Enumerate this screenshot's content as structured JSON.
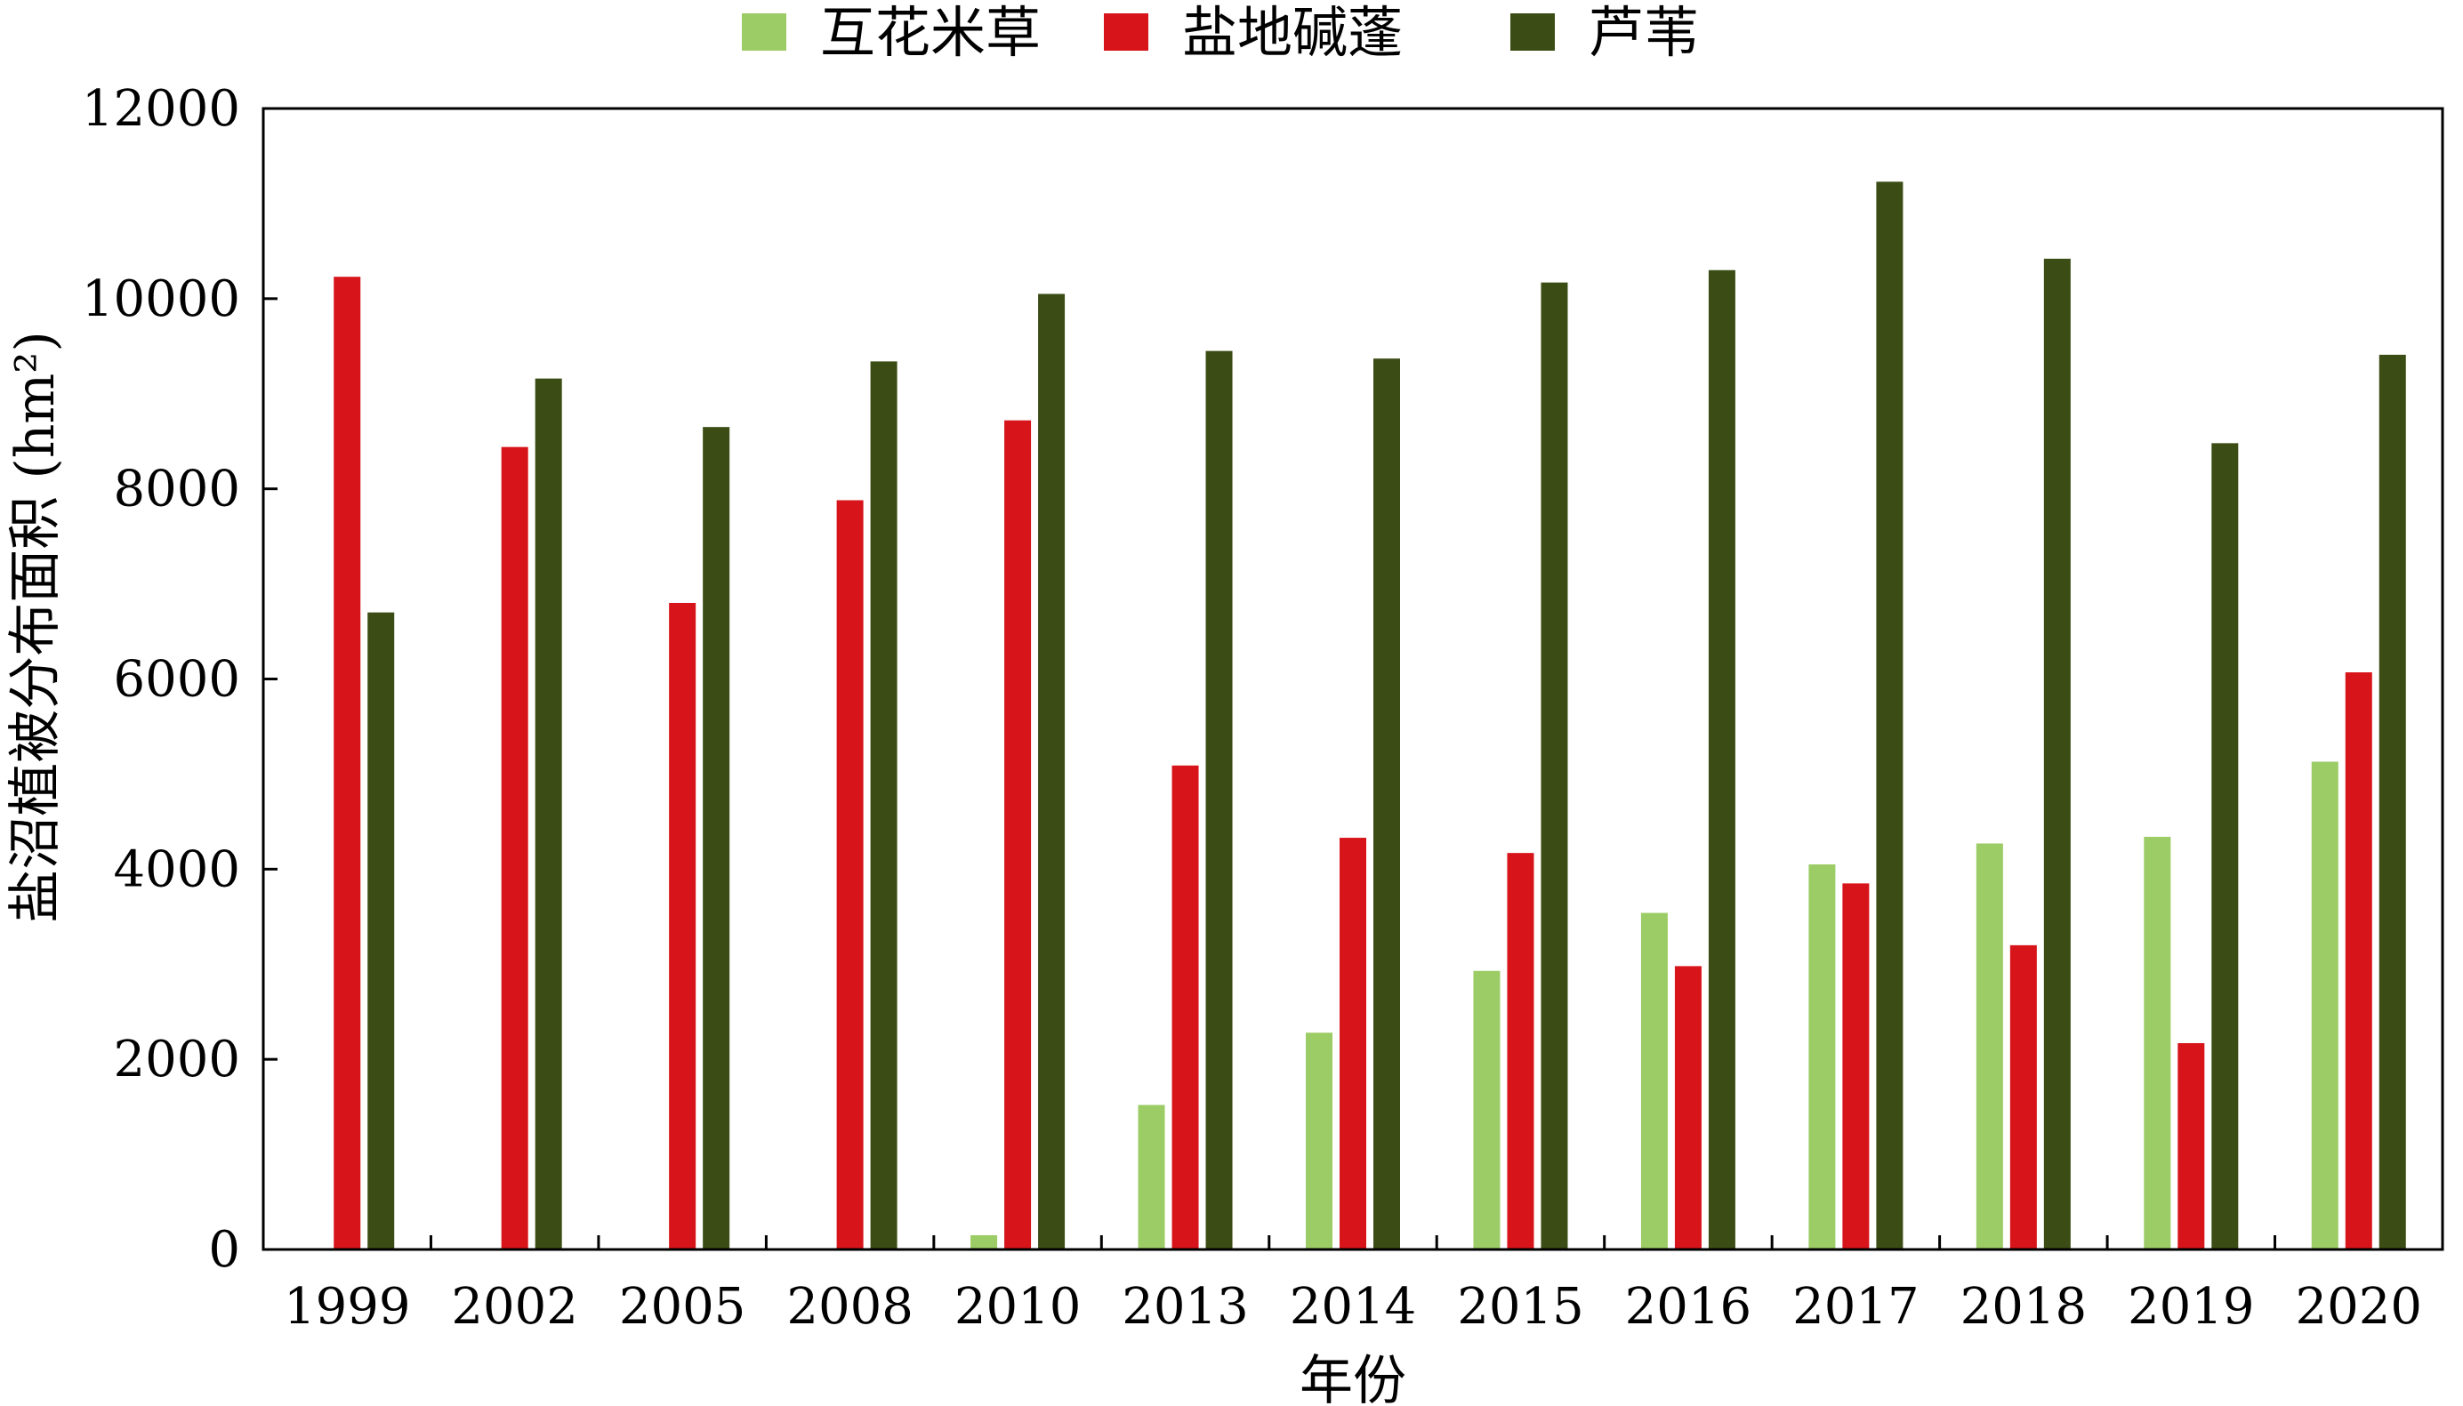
{
  "chart_data": {
    "type": "bar",
    "xlabel": "年份",
    "ylabel": "盐沼植被分布面积 (hm²)",
    "ylim": [
      0,
      12000
    ],
    "yticks": [
      0,
      2000,
      4000,
      6000,
      8000,
      10000,
      12000
    ],
    "grid": false,
    "legend": "top-center",
    "categories": [
      "1999",
      "2002",
      "2005",
      "2008",
      "2010",
      "2013",
      "2014",
      "2015",
      "2016",
      "2017",
      "2018",
      "2019",
      "2020"
    ],
    "series": [
      {
        "name": "互花米草",
        "color": "#9ccc65",
        "values": [
          0,
          0,
          0,
          0,
          150,
          1520,
          2280,
          2930,
          3540,
          4050,
          4270,
          4340,
          5130
        ]
      },
      {
        "name": "盐地碱蓬",
        "color": "#d7141a",
        "values": [
          10230,
          8440,
          6800,
          7880,
          8720,
          5090,
          4330,
          4170,
          2980,
          3850,
          3200,
          2170,
          6070
        ]
      },
      {
        "name": "芦苇",
        "color": "#3b4d14",
        "values": [
          6700,
          9160,
          8650,
          9340,
          10050,
          9450,
          9370,
          10170,
          10300,
          11230,
          10420,
          8480,
          9410
        ]
      }
    ]
  }
}
